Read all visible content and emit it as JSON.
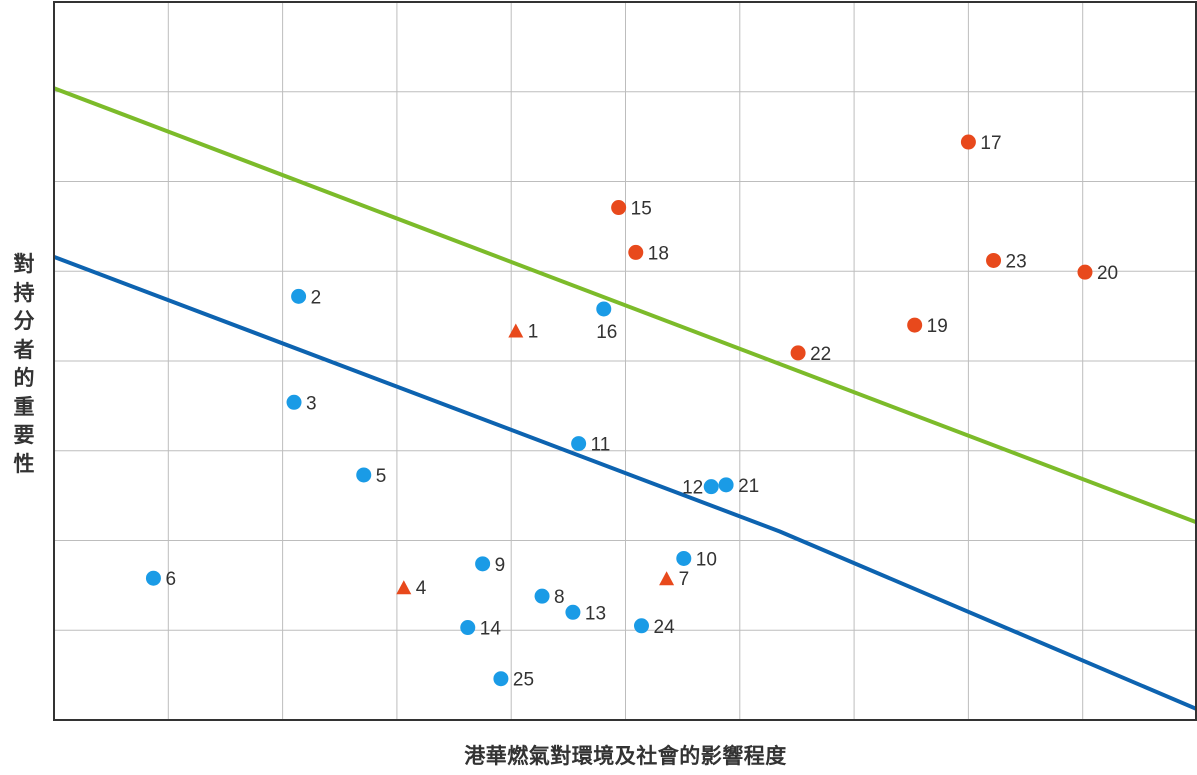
{
  "chart_data": {
    "type": "scatter",
    "xlabel": "港華燃氣對環境及社會的影響程度",
    "ylabel": "對持分者的重要性",
    "xlim": [
      0,
      10
    ],
    "ylim": [
      0,
      8
    ],
    "grid": true,
    "series": [
      {
        "marker": "circle",
        "color": "#1a9be6",
        "points": [
          {
            "label": "2",
            "x": 2.14,
            "y": 4.72
          },
          {
            "label": "3",
            "x": 2.1,
            "y": 3.54
          },
          {
            "label": "5",
            "x": 2.71,
            "y": 2.73
          },
          {
            "label": "6",
            "x": 0.87,
            "y": 1.58
          },
          {
            "label": "8",
            "x": 4.27,
            "y": 1.38
          },
          {
            "label": "9",
            "x": 3.75,
            "y": 1.74
          },
          {
            "label": "10",
            "x": 5.51,
            "y": 1.8
          },
          {
            "label": "11",
            "x": 4.59,
            "y": 3.08
          },
          {
            "label": "12",
            "x": 5.75,
            "y": 2.6
          },
          {
            "label": "13",
            "x": 4.54,
            "y": 1.2
          },
          {
            "label": "14",
            "x": 3.62,
            "y": 1.03
          },
          {
            "label": "16",
            "x": 4.81,
            "y": 4.58
          },
          {
            "label": "21",
            "x": 5.88,
            "y": 2.62
          },
          {
            "label": "24",
            "x": 5.14,
            "y": 1.05
          },
          {
            "label": "25",
            "x": 3.91,
            "y": 0.46
          }
        ]
      },
      {
        "marker": "triangle",
        "color": "#e8491c",
        "points": [
          {
            "label": "1",
            "x": 4.04,
            "y": 4.34
          },
          {
            "label": "4",
            "x": 3.06,
            "y": 1.48
          },
          {
            "label": "7",
            "x": 5.36,
            "y": 1.58
          }
        ]
      },
      {
        "marker": "circle",
        "color": "#e8491c",
        "points": [
          {
            "label": "15",
            "x": 4.94,
            "y": 5.71
          },
          {
            "label": "17",
            "x": 8.0,
            "y": 6.44
          },
          {
            "label": "18",
            "x": 5.09,
            "y": 5.21
          },
          {
            "label": "19",
            "x": 7.53,
            "y": 4.4
          },
          {
            "label": "20",
            "x": 9.02,
            "y": 4.99
          },
          {
            "label": "22",
            "x": 6.51,
            "y": 4.09
          },
          {
            "label": "23",
            "x": 8.22,
            "y": 5.12
          }
        ]
      }
    ],
    "lines": [
      {
        "color": "#7cbb2a",
        "points": [
          [
            0,
            7.04
          ],
          [
            10,
            2.2
          ]
        ]
      },
      {
        "color": "#0d63b0",
        "points": [
          [
            0,
            5.16
          ],
          [
            6.35,
            2.1
          ],
          [
            10,
            0.12
          ]
        ]
      }
    ]
  }
}
